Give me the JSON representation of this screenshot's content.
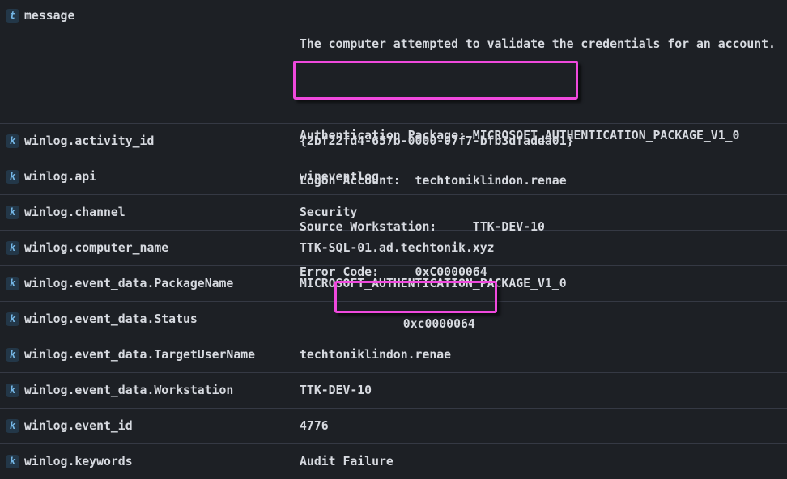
{
  "theme": {
    "background": "#1d2025",
    "divider": "#353944",
    "text": "#d7dae0",
    "badge_background": "#233748",
    "badge_letter": "#75b7e6",
    "annotation_color": "#ef49dd"
  },
  "message_row": {
    "type_badge": "t",
    "field": "message",
    "lines": [
      "The computer attempted to validate the credentials for an account.",
      "",
      "Authentication Package: MICROSOFT_AUTHENTICATION_PACKAGE_V1_0",
      "Logon Account:  techtoniklindon.renae",
      "Source Workstation:     TTK-DEV-10",
      "Error Code:     0xC0000064"
    ],
    "annotation": "box highlighting Logon Account and Source Workstation lines"
  },
  "rows": [
    {
      "type_badge": "k",
      "field": "winlog.activity_id",
      "value": "{2bf22fd4-657b-0000-07f7-bfb3dfadda01}"
    },
    {
      "type_badge": "k",
      "field": "winlog.api",
      "value": "wineventlog"
    },
    {
      "type_badge": "k",
      "field": "winlog.channel",
      "value": "Security"
    },
    {
      "type_badge": "k",
      "field": "winlog.computer_name",
      "value": "TTK-SQL-01.ad.techtonik.xyz"
    },
    {
      "type_badge": "k",
      "field": "winlog.event_data.PackageName",
      "value": "MICROSOFT_AUTHENTICATION_PACKAGE_V1_0"
    },
    {
      "type_badge": "k",
      "field": "winlog.event_data.Status",
      "value": "0xc0000064",
      "annotated": true
    },
    {
      "type_badge": "k",
      "field": "winlog.event_data.TargetUserName",
      "value": "techtoniklindon.renae"
    },
    {
      "type_badge": "k",
      "field": "winlog.event_data.Workstation",
      "value": "TTK-DEV-10"
    },
    {
      "type_badge": "k",
      "field": "winlog.event_id",
      "value": "4776"
    },
    {
      "type_badge": "k",
      "field": "winlog.keywords",
      "value": "Audit Failure"
    }
  ]
}
